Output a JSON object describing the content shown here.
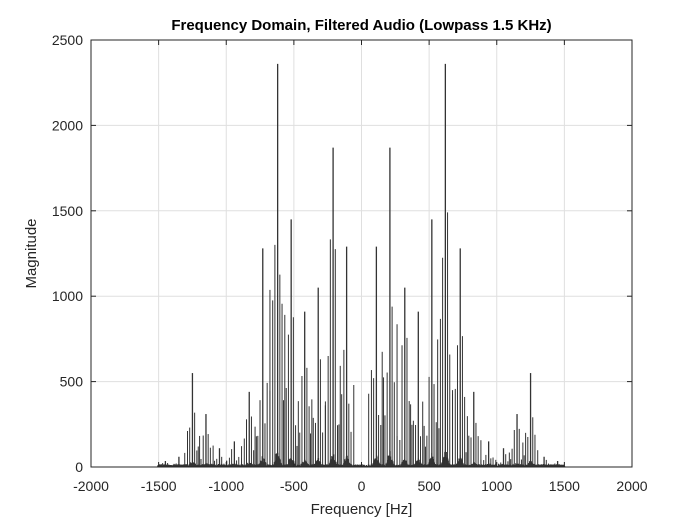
{
  "chart_data": {
    "type": "line",
    "title": "Frequency Domain, Filtered Audio (Lowpass 1.5 KHz)",
    "xlabel": "Frequency [Hz]",
    "ylabel": "Magnitude",
    "xlim": [
      -2000,
      2000
    ],
    "ylim": [
      0,
      2500
    ],
    "x_ticks": [
      -2000,
      -1500,
      -1000,
      -500,
      0,
      500,
      1000,
      1500,
      2000
    ],
    "y_ticks": [
      0,
      500,
      1000,
      1500,
      2000,
      2500
    ],
    "grid": true,
    "line_color": "#333333",
    "series": [
      {
        "peaks": [
          {
            "x": -1450,
            "y": 35
          },
          {
            "x": -1350,
            "y": 60
          },
          {
            "x": -1250,
            "y": 550
          },
          {
            "x": -1150,
            "y": 310
          },
          {
            "x": -1050,
            "y": 110
          },
          {
            "x": -940,
            "y": 150
          },
          {
            "x": -830,
            "y": 440
          },
          {
            "x": -730,
            "y": 1280
          },
          {
            "x": -620,
            "y": 2360
          },
          {
            "x": -520,
            "y": 1450
          },
          {
            "x": -420,
            "y": 910
          },
          {
            "x": -320,
            "y": 1050
          },
          {
            "x": -210,
            "y": 1870
          },
          {
            "x": -110,
            "y": 1290
          },
          {
            "x": 110,
            "y": 1290
          },
          {
            "x": 210,
            "y": 1870
          },
          {
            "x": 320,
            "y": 1050
          },
          {
            "x": 420,
            "y": 910
          },
          {
            "x": 520,
            "y": 1450
          },
          {
            "x": 620,
            "y": 2360
          },
          {
            "x": 730,
            "y": 1280
          },
          {
            "x": 830,
            "y": 440
          },
          {
            "x": 940,
            "y": 150
          },
          {
            "x": 1050,
            "y": 110
          },
          {
            "x": 1150,
            "y": 310
          },
          {
            "x": 1250,
            "y": 550
          },
          {
            "x": 1350,
            "y": 60
          },
          {
            "x": 1450,
            "y": 35
          }
        ]
      }
    ]
  }
}
